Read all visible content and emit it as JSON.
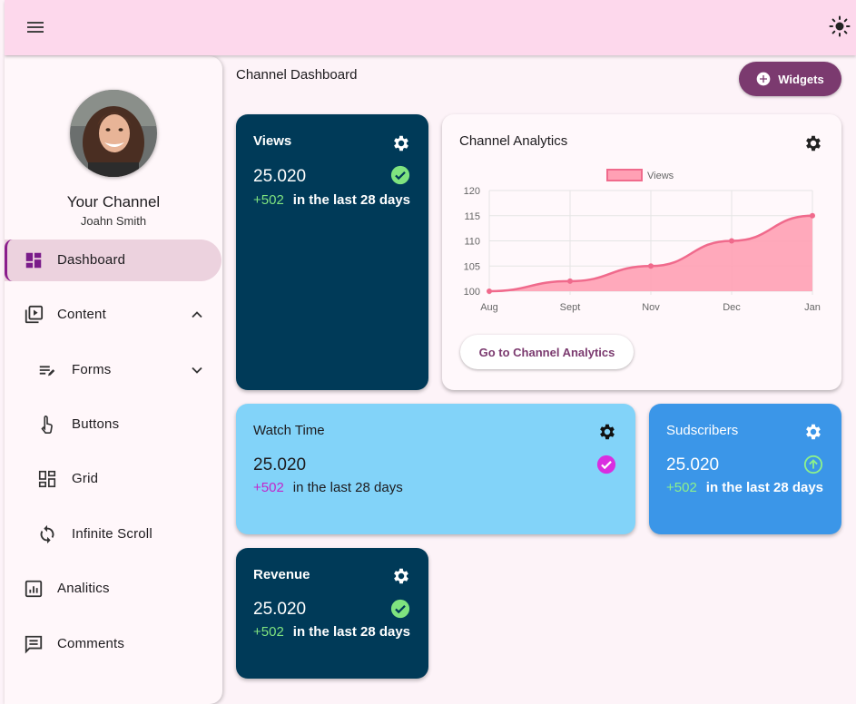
{
  "page": {
    "title": "Channel Dashboard"
  },
  "topbar": {
    "menu_icon": "menu-icon",
    "theme_icon": "sun-icon"
  },
  "sidebar": {
    "channel_name": "Your Channel",
    "user_name": "Joahn Smith",
    "items": [
      {
        "label": "Dashboard",
        "icon": "dashboard-icon",
        "active": true
      },
      {
        "label": "Content",
        "icon": "video-library-icon",
        "expanded": true
      },
      {
        "label": "Forms",
        "icon": "edit-note-icon",
        "sub": true
      },
      {
        "label": "Buttons",
        "icon": "touch-icon",
        "sub": true
      },
      {
        "label": "Grid",
        "icon": "grid-icon",
        "sub": true
      },
      {
        "label": "Infinite Scroll",
        "icon": "sync-icon",
        "sub": true
      },
      {
        "label": "Analitics",
        "icon": "analytics-icon"
      },
      {
        "label": "Comments",
        "icon": "comment-icon"
      }
    ]
  },
  "widgets_button": {
    "label": "Widgets"
  },
  "cards": {
    "views": {
      "title": "Views",
      "value": "25.020",
      "delta": "+502",
      "delta_text": "in the last 28 days"
    },
    "watch_time": {
      "title": "Watch Time",
      "value": "25.020",
      "delta": "+502",
      "delta_text": "in the last 28 days"
    },
    "subscribers": {
      "title": "Sudscribers",
      "value": "25.020",
      "delta": "+502",
      "delta_text": "in the last 28 days"
    },
    "revenue": {
      "title": "Revenue",
      "value": "25.020",
      "delta": "+502",
      "delta_text": "in the last 28 days"
    }
  },
  "analytics": {
    "title": "Channel Analytics",
    "button_label": "Go to Channel Analytics"
  },
  "colors": {
    "topbar": "#fdd8ec",
    "accent": "#7b3a6f",
    "dark_card": "#003a58",
    "light_blue_card": "#82d3f9",
    "mid_blue_card": "#3b96e8",
    "chart_line": "#f06a8c",
    "chart_fill": "#ffa0b4"
  },
  "chart_data": {
    "type": "area",
    "x": [
      "Aug",
      "Sept",
      "Nov",
      "Dec",
      "Jan"
    ],
    "series": [
      {
        "name": "Views",
        "values": [
          100,
          102,
          105,
          110,
          115
        ]
      }
    ],
    "y_ticks": [
      "100",
      "105",
      "110",
      "115",
      "120"
    ],
    "ylim": [
      100,
      120
    ],
    "legend": "top",
    "grid": true
  }
}
